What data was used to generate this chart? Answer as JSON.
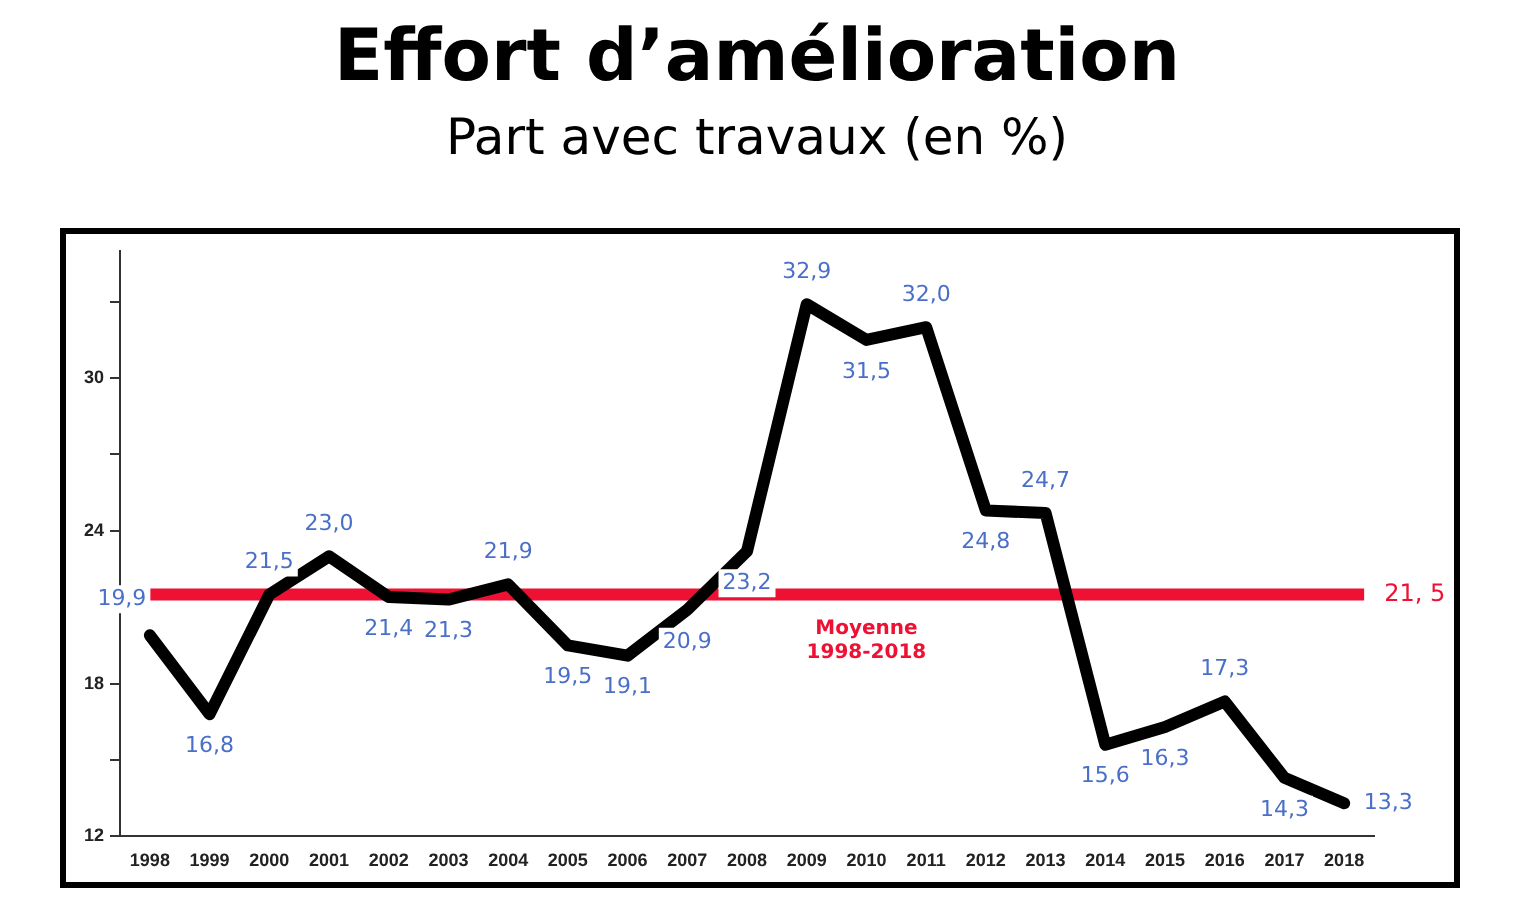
{
  "chart_data": {
    "type": "line",
    "title": "Effort d’amélioration",
    "subtitle": "Part avec travaux (en %)",
    "categories": [
      "1998",
      "1999",
      "2000",
      "2001",
      "2002",
      "2003",
      "2004",
      "2005",
      "2006",
      "2007",
      "2008",
      "2009",
      "2010",
      "2011",
      "2012",
      "2013",
      "2014",
      "2015",
      "2016",
      "2017",
      "2018"
    ],
    "series": [
      {
        "color": "#000000",
        "values": [
          19.9,
          16.8,
          21.5,
          23.0,
          21.4,
          21.3,
          21.9,
          19.5,
          19.1,
          20.9,
          23.2,
          32.9,
          31.5,
          32.0,
          24.8,
          24.7,
          15.6,
          16.3,
          17.3,
          14.3,
          13.3
        ],
        "value_labels": [
          "19,9",
          "16,8",
          "21,5",
          "23,0",
          "21,4",
          "21,3",
          "21,9",
          "19,5",
          "19,1",
          "20,9",
          "23,2",
          "32,9",
          "31,5",
          "32,0",
          "24,8",
          "24,7",
          "15,6",
          "16,3",
          "17,3",
          "14,3",
          "13,3"
        ]
      }
    ],
    "ylim": [
      12,
      35
    ],
    "yticks": [
      12,
      {
        "value": 15,
        "label": null
      },
      18,
      {
        "value": 21,
        "label": null
      },
      24,
      {
        "value": 27,
        "label": null
      },
      30,
      {
        "value": 33,
        "label": null
      }
    ],
    "ref_lines": [
      {
        "axis": "y",
        "value": 21.5,
        "label": "21, 5",
        "color": "#ee1133"
      }
    ],
    "annotations": [
      {
        "text": "Moyenne 1998-2018",
        "x": "2010",
        "y": 21.5
      }
    ],
    "grid": false,
    "legend": false,
    "marker": "none",
    "line_style": "solid"
  }
}
